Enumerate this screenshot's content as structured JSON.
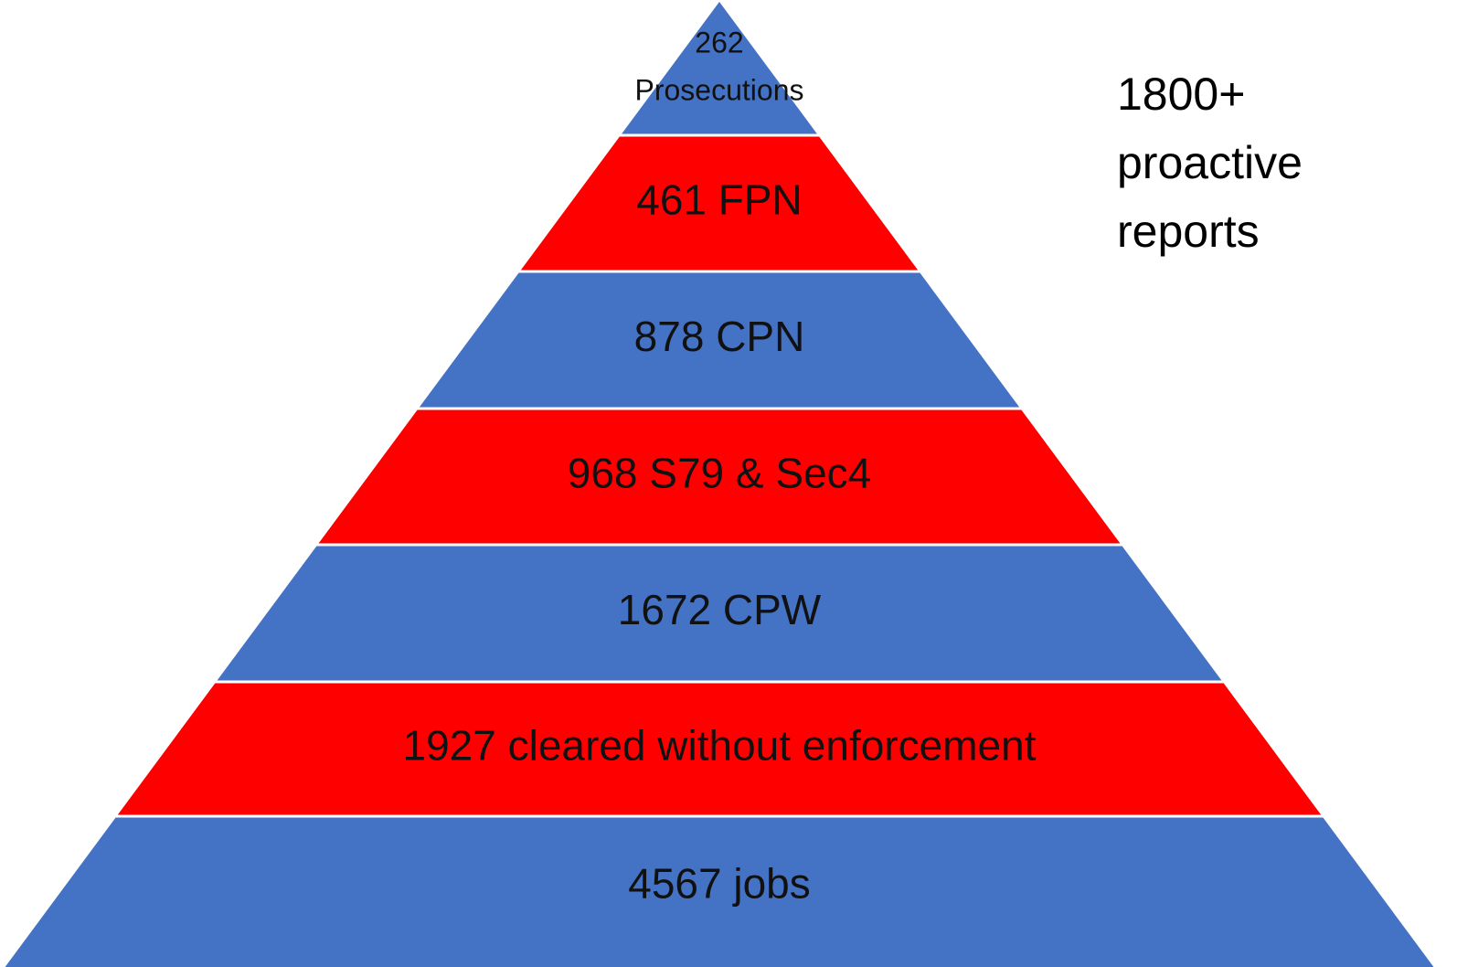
{
  "pyramid": {
    "levels": [
      {
        "lines": [
          "262",
          "Prosecutions"
        ],
        "color": "#4472c4"
      },
      {
        "lines": [
          "461 FPN"
        ],
        "color": "#ff0000"
      },
      {
        "lines": [
          "878 CPN"
        ],
        "color": "#4472c4"
      },
      {
        "lines": [
          "968 S79 & Sec4"
        ],
        "color": "#ff0000"
      },
      {
        "lines": [
          "1672 CPW"
        ],
        "color": "#4472c4"
      },
      {
        "lines": [
          "1927 cleared without enforcement"
        ],
        "color": "#ff0000"
      },
      {
        "lines": [
          "4567  jobs"
        ],
        "color": "#4472c4"
      }
    ],
    "note": {
      "lines": [
        "1800+",
        "proactive",
        "reports"
      ]
    }
  }
}
